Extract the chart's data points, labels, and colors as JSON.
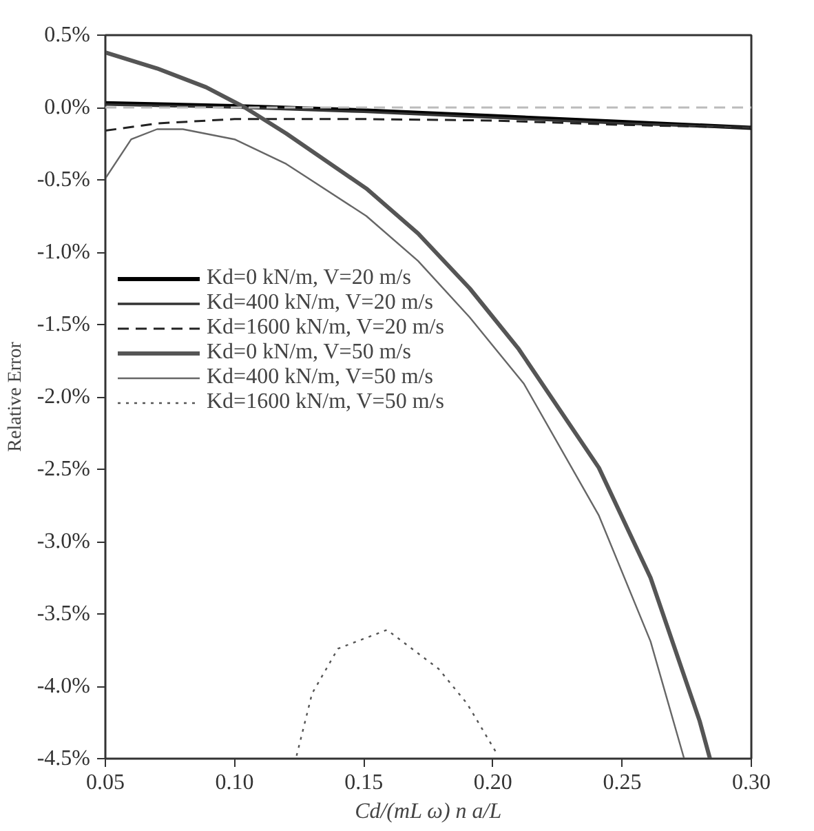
{
  "chart_data": {
    "type": "line",
    "xlabel": "Cd/(mL ω) n a/L",
    "ylabel": "Relative Error",
    "xlim": [
      0.05,
      0.3
    ],
    "xticks": [
      {
        "value": 0.05,
        "label": "0.05"
      },
      {
        "value": 0.1,
        "label": "0.10"
      },
      {
        "value": 0.15,
        "label": "0.15"
      },
      {
        "value": 0.2,
        "label": "0.20"
      },
      {
        "value": 0.25,
        "label": "0.25"
      },
      {
        "value": 0.3,
        "label": "0.30"
      }
    ],
    "ylim": [
      -4.5,
      0.5
    ],
    "yticks": [
      {
        "value": 0.5,
        "label": "0.5%"
      },
      {
        "value": 0,
        "label": "0.0%"
      },
      {
        "value": -0.5,
        "label": "-0.5%"
      },
      {
        "value": -1,
        "label": "-1.0%"
      },
      {
        "value": -1.5,
        "label": "-1.5%"
      },
      {
        "value": -2,
        "label": "-2.0%"
      },
      {
        "value": -2.5,
        "label": "-2.5%"
      },
      {
        "value": -3,
        "label": "-3.0%"
      },
      {
        "value": -3.5,
        "label": "-3.5%"
      },
      {
        "value": -4,
        "label": "-4.0%"
      },
      {
        "value": -4.5,
        "label": "-4.5%"
      }
    ],
    "grid": false,
    "legend": "left",
    "marker": "none",
    "ref_lines": [
      {
        "axis": "y",
        "value": 0,
        "color": "#bbbbbb",
        "line_style": "dashed"
      }
    ],
    "series": [
      {
        "name": "Kd=0 kN/m, V=20 m/s",
        "color": "#000000",
        "line_style": "solid",
        "x": [
          0.05,
          0.1,
          0.15,
          0.2,
          0.25,
          0.3
        ],
        "values": [
          0.03,
          0.01,
          -0.02,
          -0.06,
          -0.1,
          -0.14
        ]
      },
      {
        "name": "Kd=400 kN/m, V=20 m/s",
        "color": "#333333",
        "line_style": "solid",
        "x": [
          0.05,
          0.1,
          0.15,
          0.2,
          0.25,
          0.3
        ],
        "values": [
          0.02,
          0.0,
          -0.03,
          -0.07,
          -0.11,
          -0.14
        ]
      },
      {
        "name": "Kd=1600 kN/m, V=20 m/s",
        "color": "#222222",
        "line_style": "dashed",
        "x": [
          0.05,
          0.07,
          0.1,
          0.15,
          0.2,
          0.25,
          0.3
        ],
        "values": [
          -0.16,
          -0.11,
          -0.08,
          -0.08,
          -0.09,
          -0.12,
          -0.14
        ]
      },
      {
        "name": "Kd=0 kN/m, V=50 m/s",
        "color": "#555555",
        "line_style": "solid",
        "x": [
          0.05,
          0.07,
          0.089,
          0.104,
          0.12,
          0.151,
          0.171,
          0.191,
          0.21,
          0.241,
          0.261,
          0.28,
          0.284
        ],
        "values": [
          0.38,
          0.27,
          0.14,
          0.0,
          -0.18,
          -0.56,
          -0.87,
          -1.25,
          -1.67,
          -2.49,
          -3.25,
          -4.24,
          -4.5
        ]
      },
      {
        "name": "Kd=400 kN/m, V=50 m/s",
        "color": "#666666",
        "line_style": "solid",
        "x": [
          0.05,
          0.06,
          0.07,
          0.08,
          0.1,
          0.12,
          0.151,
          0.171,
          0.191,
          0.212,
          0.241,
          0.261,
          0.274
        ],
        "values": [
          -0.49,
          -0.22,
          -0.15,
          -0.15,
          -0.22,
          -0.39,
          -0.75,
          -1.06,
          -1.45,
          -1.91,
          -2.82,
          -3.69,
          -4.5
        ]
      },
      {
        "name": "Kd=1600 kN/m, V=50 m/s",
        "color": "#555555",
        "line_style": "dotted",
        "x": [
          0.124,
          0.13,
          0.14,
          0.159,
          0.179,
          0.19,
          0.201
        ],
        "values": [
          -4.48,
          -4.05,
          -3.74,
          -3.61,
          -3.88,
          -4.12,
          -4.45
        ]
      }
    ]
  }
}
